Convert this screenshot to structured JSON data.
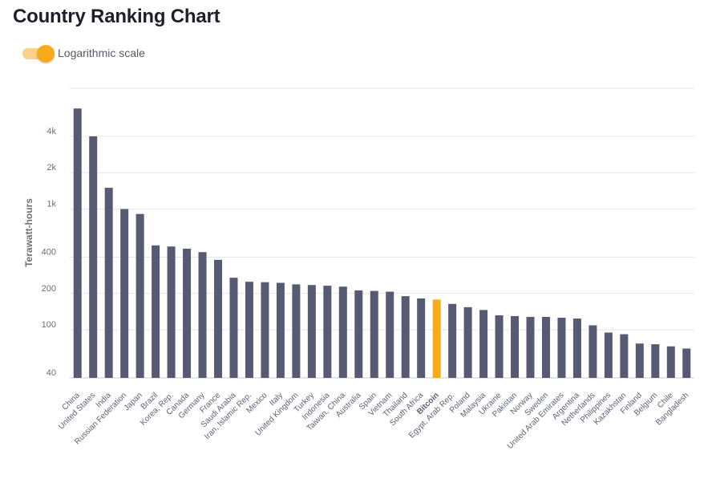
{
  "title": "Country Ranking Chart",
  "toggle": {
    "label": "Logarithmic scale",
    "on": true
  },
  "colors": {
    "bar": "#575a73",
    "highlight": "#f7ab1b",
    "grid": "#e6e6e6"
  },
  "chart_data": {
    "type": "bar",
    "ylabel": "Terawatt-hours",
    "yscale": "log",
    "ylim": [
      40,
      10000
    ],
    "yticks": [
      40,
      100,
      200,
      400,
      1000,
      2000,
      4000
    ],
    "ytick_labels": [
      "40",
      "100",
      "200",
      "400",
      "1k",
      "2k",
      "4k"
    ],
    "highlight": "Bitcoin",
    "categories": [
      "China",
      "United States",
      "India",
      "Russian Federation",
      "Japan",
      "Brazil",
      "Korea, Rep.",
      "Canada",
      "Germany",
      "France",
      "Saudi Arabia",
      "Iran, Islamic Rep.",
      "Mexico",
      "Italy",
      "United Kingdom",
      "Turkey",
      "Indonesia",
      "Taiwan, China",
      "Australia",
      "Spain",
      "Vietnam",
      "Thailand",
      "South Africa",
      "Bitcoin",
      "Egypt, Arab Rep.",
      "Poland",
      "Malaysia",
      "Ukraine",
      "Pakistan",
      "Norway",
      "Sweden",
      "United Arab Emirates",
      "Argentina",
      "Netherlands",
      "Philippines",
      "Kazakhstan",
      "Finland",
      "Belgium",
      "Chile",
      "Bangladesh"
    ],
    "values": [
      6800,
      4000,
      1500,
      1000,
      910,
      500,
      490,
      470,
      440,
      380,
      270,
      250,
      248,
      245,
      238,
      235,
      232,
      228,
      212,
      210,
      207,
      190,
      182,
      178,
      164,
      154,
      146,
      132,
      130,
      128,
      128,
      126,
      124,
      109,
      95,
      92,
      77,
      76,
      73,
      70
    ]
  }
}
